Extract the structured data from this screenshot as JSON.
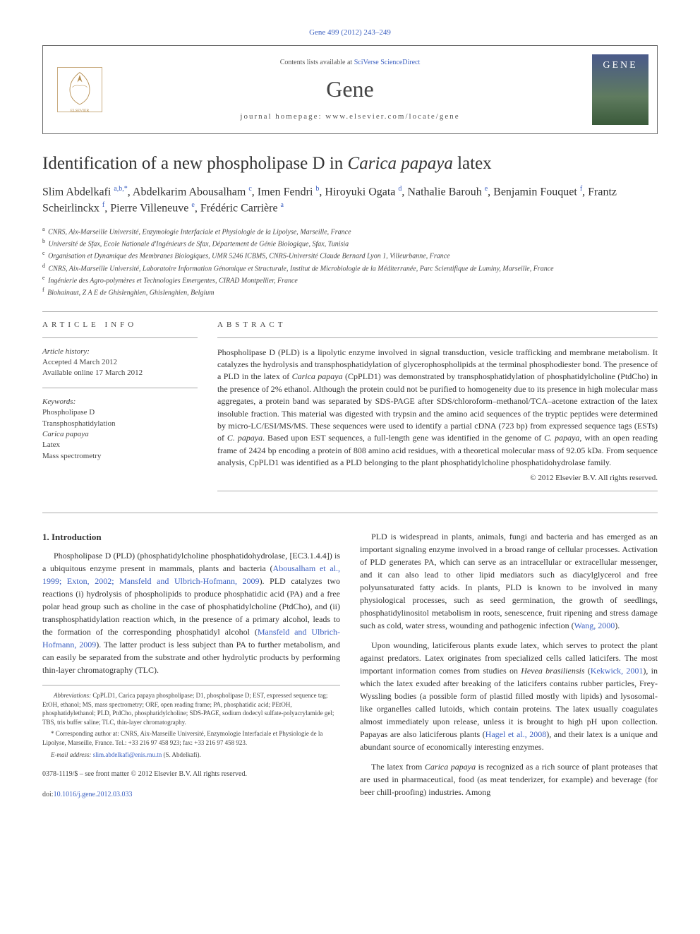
{
  "header": {
    "citation": "Gene 499 (2012) 243–249",
    "contents_prefix": "Contents lists available at ",
    "contents_link": "SciVerse ScienceDirect",
    "journal": "Gene",
    "homepage_label": "journal homepage: www.elsevier.com/locate/gene",
    "cover_text": "GENE"
  },
  "title_html": "Identification of a new phospholipase D in <em>Carica papaya</em> latex",
  "authors_html": "Slim Abdelkafi <sup>a,b,*</sup>, Abdelkarim Abousalham <sup>c</sup>, Imen Fendri <sup>b</sup>, Hiroyuki Ogata <sup>d</sup>, Nathalie Barouh <sup>e</sup>, Benjamin Fouquet <sup>f</sup>, Frantz Scheirlinckx <sup>f</sup>, Pierre Villeneuve <sup>e</sup>, Frédéric Carrière <sup>a</sup>",
  "affiliations": [
    {
      "sup": "a",
      "text": "CNRS, Aix-Marseille Université, Enzymologie Interfaciale et Physiologie de la Lipolyse, Marseille, France"
    },
    {
      "sup": "b",
      "text": "Université de Sfax, Ecole Nationale d'Ingénieurs de Sfax, Département de Génie Biologique, Sfax, Tunisia"
    },
    {
      "sup": "c",
      "text": "Organisation et Dynamique des Membranes Biologiques, UMR 5246 ICBMS, CNRS-Université Claude Bernard Lyon 1, Villeurbanne, France"
    },
    {
      "sup": "d",
      "text": "CNRS, Aix-Marseille Université, Laboratoire Information Génomique et Structurale, Institut de Microbiologie de la Méditerranée, Parc Scientifique de Luminy, Marseille, France"
    },
    {
      "sup": "e",
      "text": "Ingénierie des Agro-polymères et Technologies Emergentes, CIRAD Montpellier, France"
    },
    {
      "sup": "f",
      "text": "Biohainaut, Z A E de Ghislenghien, Ghislenghien, Belgium"
    }
  ],
  "article_info": {
    "header": "ARTICLE INFO",
    "history_label": "Article history:",
    "accepted": "Accepted 4 March 2012",
    "online": "Available online 17 March 2012",
    "keywords_label": "Keywords:",
    "keywords": [
      "Phospholipase D",
      "Transphosphatidylation",
      "Carica papaya",
      "Latex",
      "Mass spectrometry"
    ]
  },
  "abstract": {
    "header": "ABSTRACT",
    "text_html": "Phospholipase D (PLD) is a lipolytic enzyme involved in signal transduction, vesicle trafficking and membrane metabolism. It catalyzes the hydrolysis and transphosphatidylation of glycerophospholipids at the terminal phosphodiester bond. The presence of a PLD in the latex of <em>Carica papaya</em> (CpPLD1) was demonstrated by transphosphatidylation of phosphatidylcholine (PtdCho) in the presence of 2% ethanol. Although the protein could not be purified to homogeneity due to its presence in high molecular mass aggregates, a protein band was separated by SDS-PAGE after SDS/chloroform–methanol/TCA–acetone extraction of the latex insoluble fraction. This material was digested with trypsin and the amino acid sequences of the tryptic peptides were determined by micro-LC/ESI/MS/MS. These sequences were used to identify a partial cDNA (723 bp) from expressed sequence tags (ESTs) of <em>C. papaya</em>. Based upon EST sequences, a full-length gene was identified in the genome of <em>C. papaya</em>, with an open reading frame of 2424 bp encoding a protein of 808 amino acid residues, with a theoretical molecular mass of 92.05 kDa. From sequence analysis, CpPLD1 was identified as a PLD belonging to the plant phosphatidylcholine phosphatidohydrolase family.",
    "copyright": "© 2012 Elsevier B.V. All rights reserved."
  },
  "body": {
    "intro_header": "1. Introduction",
    "left_paragraphs": [
      "Phospholipase D (PLD) (phosphatidylcholine phosphatidohydrolase, [EC3.1.4.4]) is a ubiquitous enzyme present in mammals, plants and bacteria (<a href='#'>Abousalham et al., 1999; Exton, 2002; Mansfeld and Ulbrich-Hofmann, 2009</a>). PLD catalyzes two reactions (i) hydrolysis of phospholipids to produce phosphatidic acid (PA) and a free polar head group such as choline in the case of phosphatidylcholine (PtdCho), and (ii) transphosphatidylation reaction which, in the presence of a primary alcohol, leads to the formation of the corresponding phosphatidyl alcohol (<a href='#'>Mansfeld and Ulbrich-Hofmann, 2009</a>). The latter product is less subject than PA to further metabolism, and can easily be separated from the substrate and other hydrolytic products by performing thin-layer chromatography (TLC)."
    ],
    "right_paragraphs": [
      "PLD is widespread in plants, animals, fungi and bacteria and has emerged as an important signaling enzyme involved in a broad range of cellular processes. Activation of PLD generates PA, which can serve as an intracellular or extracellular messenger, and it can also lead to other lipid mediators such as diacylglycerol and free polyunsaturated fatty acids. In plants, PLD is known to be involved in many physiological processes, such as seed germination, the growth of seedlings, phosphatidylinositol metabolism in roots, senescence, fruit ripening and stress damage such as cold, water stress, wounding and pathogenic infection (<a href='#'>Wang, 2000</a>).",
      "Upon wounding, laticiferous plants exude latex, which serves to protect the plant against predators. Latex originates from specialized cells called laticifers. The most important information comes from studies on <em>Hevea brasiliensis</em> (<a href='#'>Kekwick, 2001</a>), in which the latex exuded after breaking of the laticifers contains rubber particles, Frey-Wyssling bodies (a possible form of plastid filled mostly with lipids) and lysosomal-like organelles called lutoids, which contain proteins. The latex usually coagulates almost immediately upon release, unless it is brought to high pH upon collection. Papayas are also laticiferous plants (<a href='#'>Hagel et al., 2008</a>), and their latex is a unique and abundant source of economically interesting enzymes.",
      "The latex from <em>Carica papaya</em> is recognized as a rich source of plant proteases that are used in pharmaceutical, food (as meat tenderizer, for example) and beverage (for beer chill-proofing) industries. Among"
    ]
  },
  "footnotes": {
    "abbrev_label": "Abbreviations:",
    "abbrev_text": " CpPLD1, Carica papaya phospholipase; D1, phospholipase D; EST, expressed sequence tag; EtOH, ethanol; MS, mass spectrometry; ORF, open reading frame; PA, phosphatidic acid; PEtOH, phosphatidylethanol; PLD, PtdCho, phosphatidylcholine; SDS-PAGE, sodium dodecyl sulfate-polyacrylamide gel; TBS, tris buffer saline; TLC, thin-layer chromatography.",
    "corresponding_label": "* Corresponding author at:",
    "corresponding_text": " CNRS, Aix-Marseille Université, Enzymologie Interfaciale et Physiologie de la Lipolyse, Marseille, France. Tel.: +33 216 97 458 923; fax: +33 216 97 458 923.",
    "email_label": "E-mail address:",
    "email": "slim.abdelkafi@enis.rnu.tn",
    "email_suffix": " (S. Abdelkafi)."
  },
  "footer": {
    "issn": "0378-1119/$ – see front matter © 2012 Elsevier B.V. All rights reserved.",
    "doi_label": "doi:",
    "doi": "10.1016/j.gene.2012.03.033"
  },
  "colors": {
    "link": "#3b5fc0",
    "text": "#222",
    "muted": "#555",
    "border": "#aaa"
  }
}
